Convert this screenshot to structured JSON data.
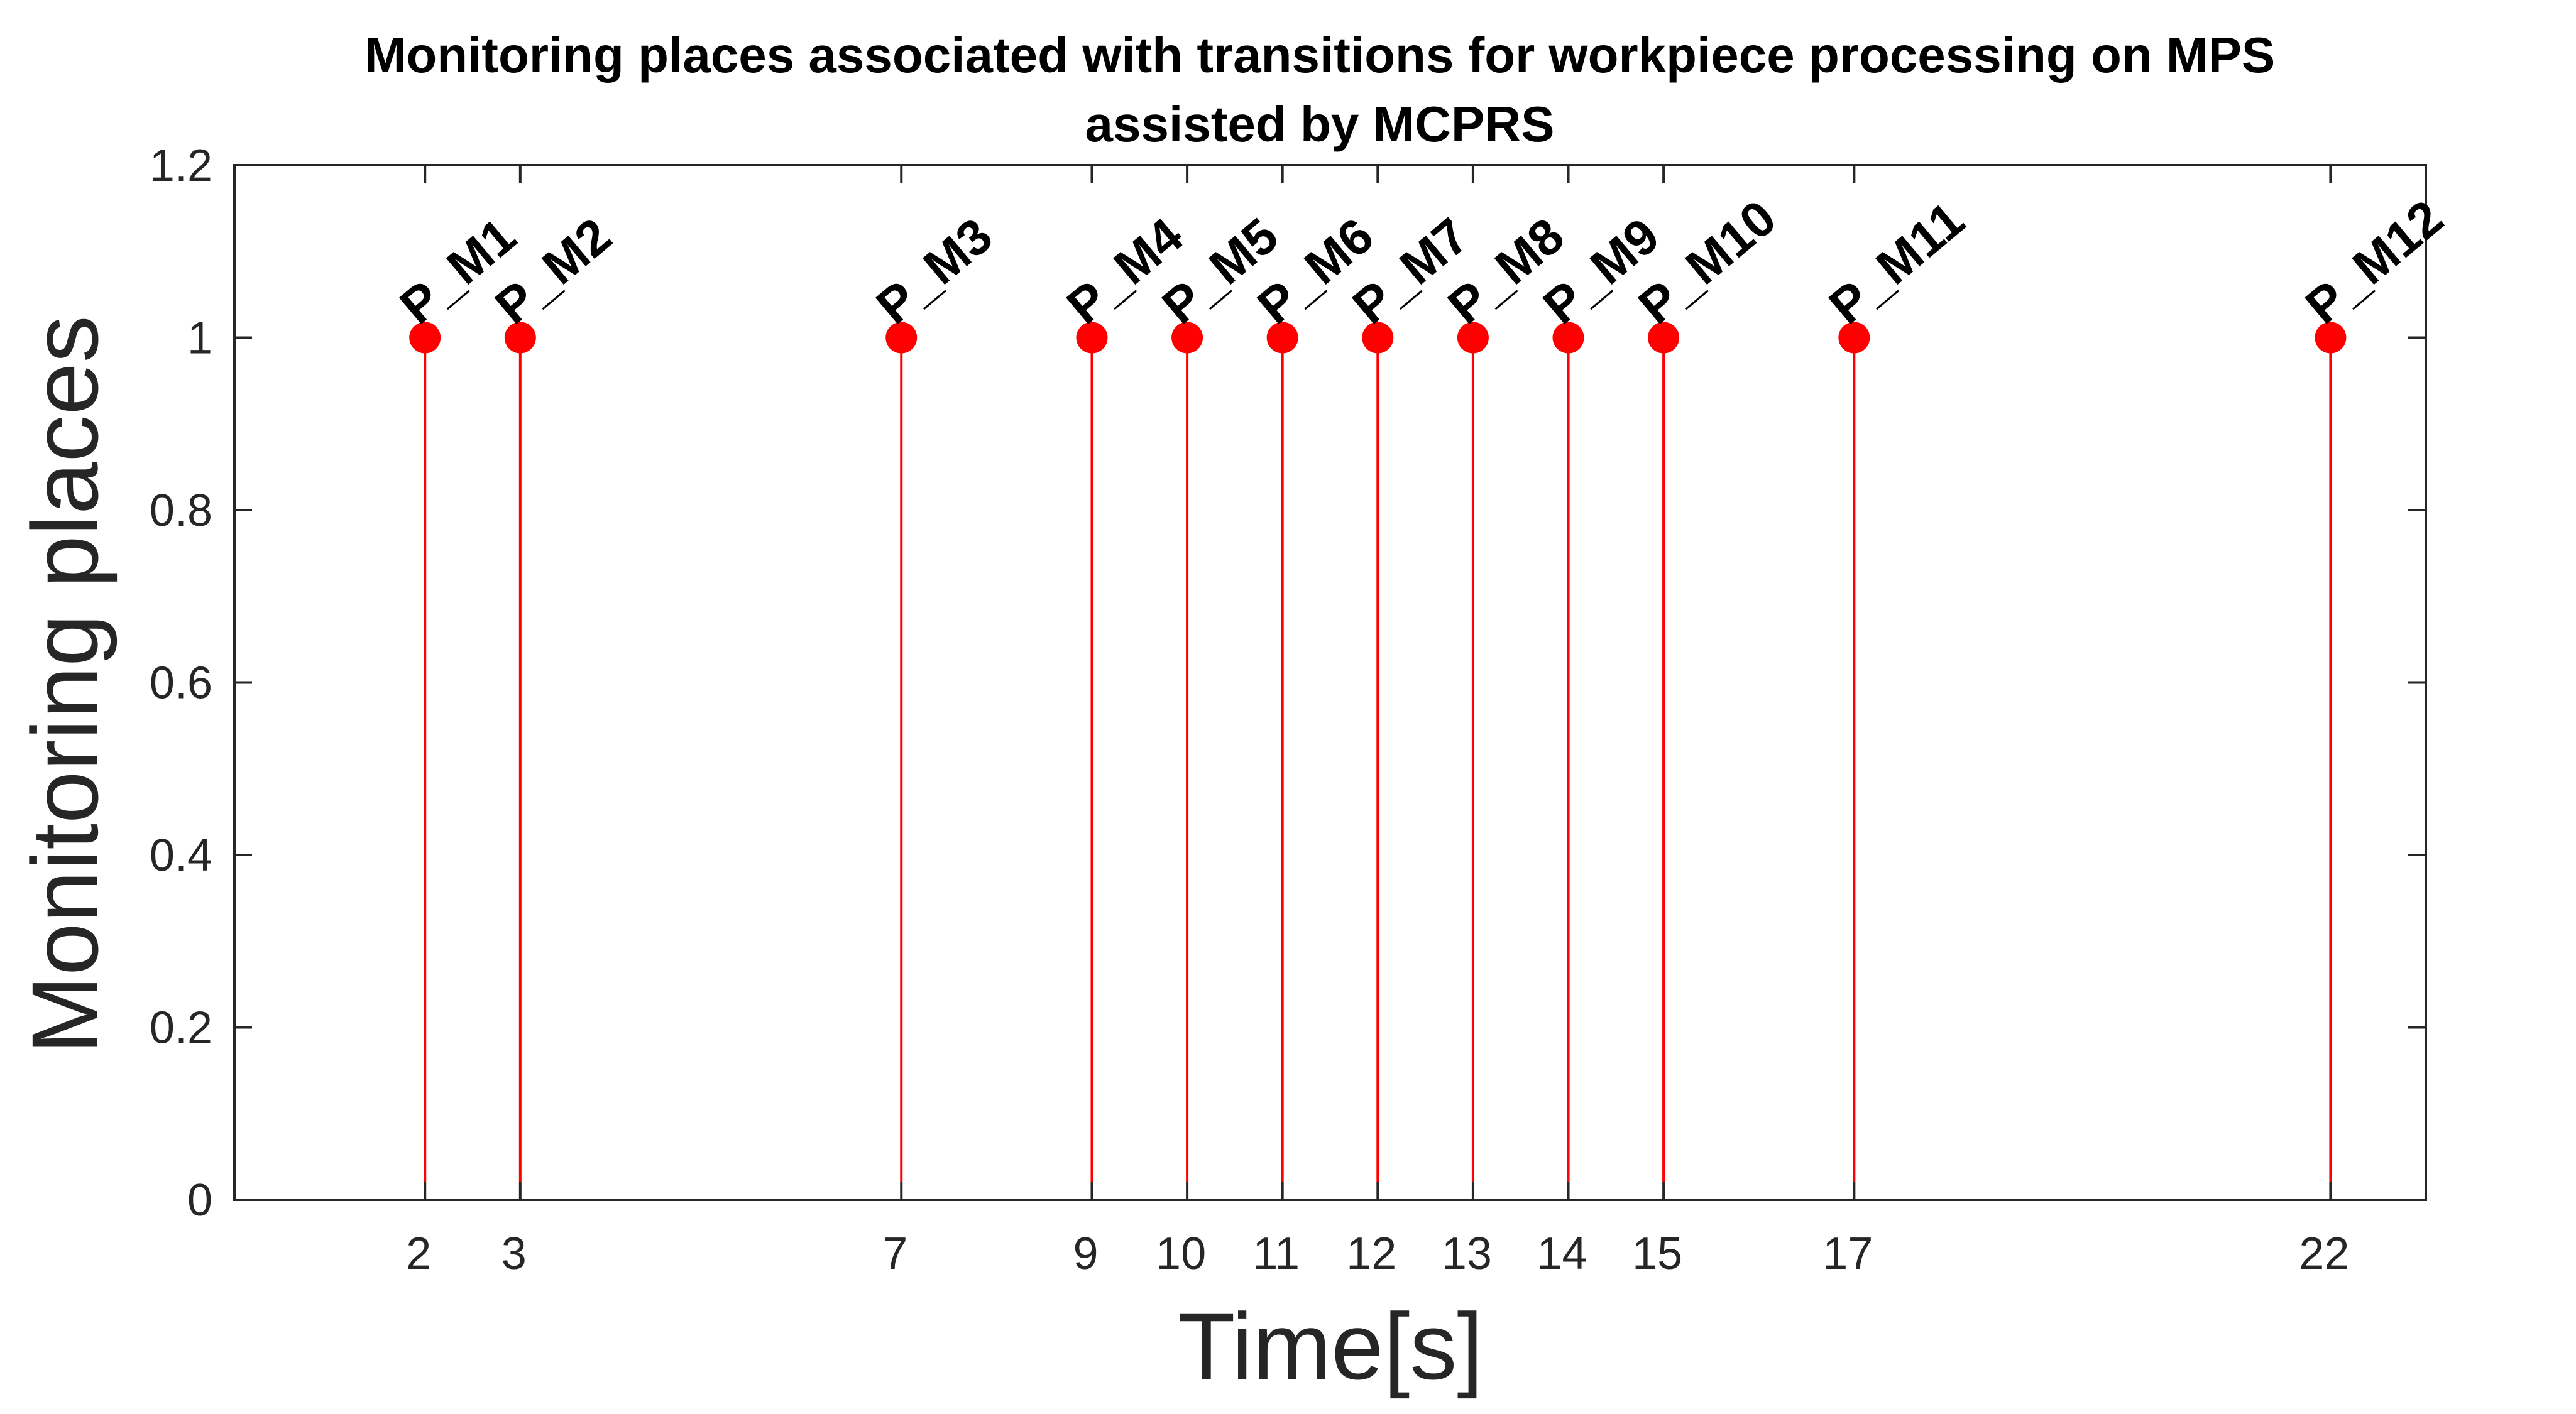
{
  "chart_data": {
    "type": "stem",
    "title": "Monitoring places associated with transitions for workpiece processing on MPS",
    "subtitle": "assisted by MCPRS",
    "xlabel": "Time[s]",
    "ylabel": "Monitoring places",
    "xlim": [
      0,
      23
    ],
    "ylim": [
      0,
      1.2
    ],
    "xticks": [
      2,
      3,
      7,
      9,
      10,
      11,
      12,
      13,
      14,
      15,
      17,
      22
    ],
    "xtick_labels": [
      "2",
      "3",
      "7",
      "9",
      "10",
      "11",
      "12",
      "13",
      "14",
      "15",
      "17",
      "22"
    ],
    "yticks": [
      0,
      0.2,
      0.4,
      0.6,
      0.8,
      1,
      1.2
    ],
    "ytick_labels": [
      "0",
      "0.2",
      "0.4",
      "0.6",
      "0.8",
      "1",
      "1.2"
    ],
    "grid": false,
    "series": [
      {
        "color": "#ff0000",
        "x": [
          2,
          3,
          7,
          9,
          10,
          11,
          12,
          13,
          14,
          15,
          17,
          22
        ],
        "y": [
          1,
          1,
          1,
          1,
          1,
          1,
          1,
          1,
          1,
          1,
          1,
          1
        ]
      }
    ],
    "annotations": [
      "P_M1",
      "P_M2",
      "P_M3",
      "P_M4",
      "P_M5",
      "P_M6",
      "P_M7",
      "P_M8",
      "P_M9",
      "P_M10",
      "P_M11",
      "P_M12"
    ],
    "colors": {
      "stem": "#ff0000",
      "axes": "#262626",
      "text": "#000000"
    }
  }
}
